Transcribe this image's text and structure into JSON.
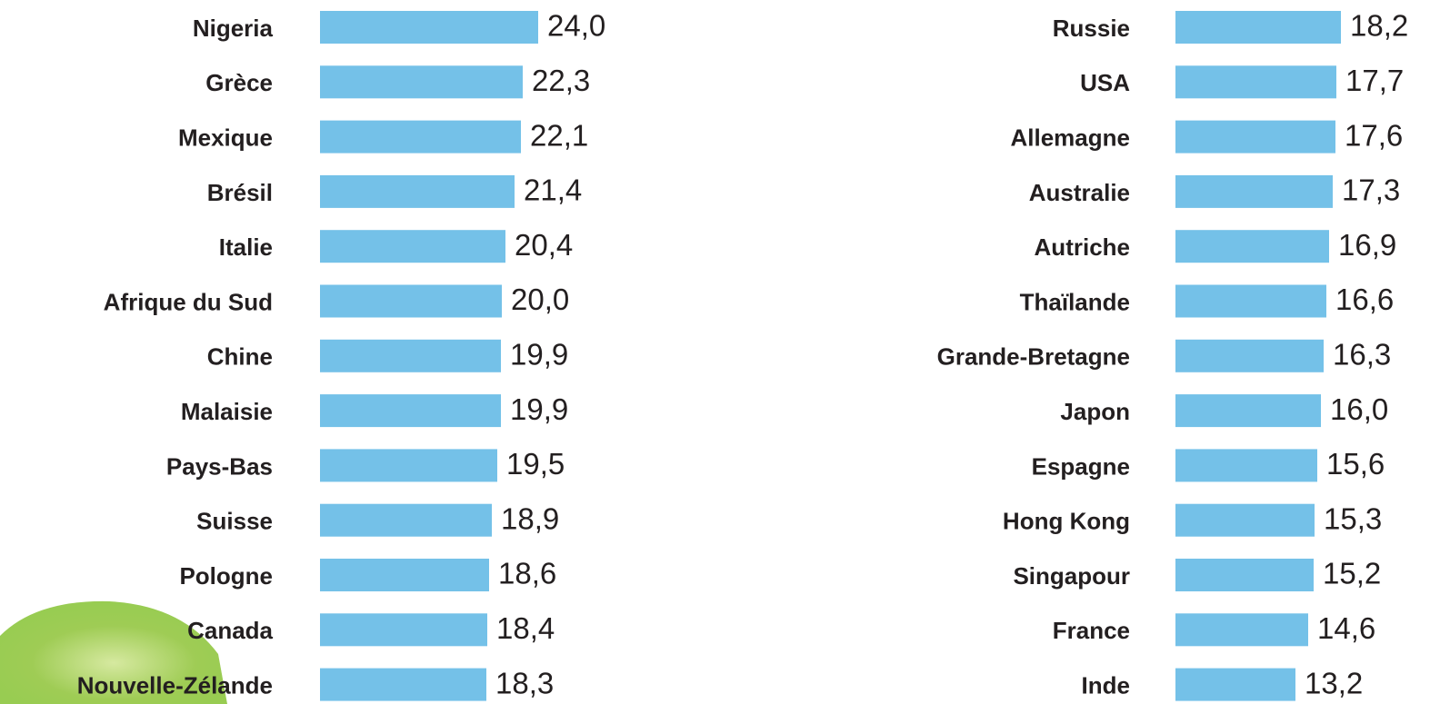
{
  "chart_data": [
    {
      "type": "bar",
      "orientation": "horizontal",
      "color": "#74c1e8",
      "xlim": [
        0,
        24.5
      ],
      "categories": [
        "Nigeria",
        "Grèce",
        "Mexique",
        "Brésil",
        "Italie",
        "Afrique du Sud",
        "Chine",
        "Malaisie",
        "Pays-Bas",
        "Suisse",
        "Pologne",
        "Canada",
        "Nouvelle-Zélande"
      ],
      "values": [
        24.0,
        22.3,
        22.1,
        21.4,
        20.4,
        20.0,
        19.9,
        19.9,
        19.5,
        18.9,
        18.6,
        18.4,
        18.3
      ],
      "value_labels": [
        "24,0",
        "22,3",
        "22,1",
        "21,4",
        "20,4",
        "20,0",
        "19,9",
        "19,9",
        "19,5",
        "18,9",
        "18,6",
        "18,4",
        "18,3"
      ]
    },
    {
      "type": "bar",
      "orientation": "horizontal",
      "color": "#74c1e8",
      "xlim": [
        0,
        24.5
      ],
      "categories": [
        "Russie",
        "USA",
        "Allemagne",
        "Australie",
        "Autriche",
        "Thaïlande",
        "Grande-Bretagne",
        "Japon",
        "Espagne",
        "Hong Kong",
        "Singapour",
        "France",
        "Inde"
      ],
      "values": [
        18.2,
        17.7,
        17.6,
        17.3,
        16.9,
        16.6,
        16.3,
        16.0,
        15.6,
        15.3,
        15.2,
        14.6,
        13.2
      ],
      "value_labels": [
        "18,2",
        "17,7",
        "17,6",
        "17,3",
        "16,9",
        "16,6",
        "16,3",
        "16,0",
        "15,6",
        "15,3",
        "15,2",
        "14,6",
        "13,2"
      ]
    }
  ]
}
